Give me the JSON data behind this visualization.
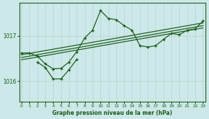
{
  "xlabel": "Graphe pression niveau de la mer (hPa)",
  "bg_color": "#cce8e8",
  "grid_color": "#b8d0d0",
  "line_color": "#1a5c1a",
  "x_ticks": [
    0,
    1,
    2,
    3,
    4,
    5,
    6,
    7,
    8,
    9,
    10,
    11,
    12,
    13,
    14,
    15,
    16,
    17,
    18,
    19,
    20,
    21,
    22,
    23
  ],
  "y_ticks": [
    1016,
    1017
  ],
  "ylim": [
    1015.55,
    1017.72
  ],
  "xlim": [
    -0.3,
    23.3
  ],
  "series_main_x": [
    0,
    1,
    2,
    3,
    4,
    5,
    6,
    7,
    8,
    9,
    10,
    11,
    12,
    13,
    14,
    15,
    16,
    17,
    18,
    19,
    20,
    21,
    22,
    23
  ],
  "series_main_y": [
    1016.62,
    1016.62,
    1016.55,
    1016.38,
    1016.27,
    1016.28,
    1016.42,
    1016.65,
    1016.95,
    1017.12,
    1017.55,
    1017.38,
    1017.35,
    1017.22,
    1017.12,
    1016.78,
    1016.75,
    1016.78,
    1016.92,
    1017.05,
    1017.02,
    1017.12,
    1017.15,
    1017.32
  ],
  "line1_x": [
    0,
    23
  ],
  "line1_y": [
    1016.58,
    1017.28
  ],
  "line2_x": [
    0,
    23
  ],
  "line2_y": [
    1016.52,
    1017.22
  ],
  "line3_x": [
    0,
    23
  ],
  "line3_y": [
    1016.47,
    1017.17
  ],
  "zigzag_x": [
    2,
    3,
    4,
    5,
    6,
    7
  ],
  "zigzag_y": [
    1016.42,
    1016.3,
    1016.05,
    1016.05,
    1016.25,
    1016.48
  ]
}
